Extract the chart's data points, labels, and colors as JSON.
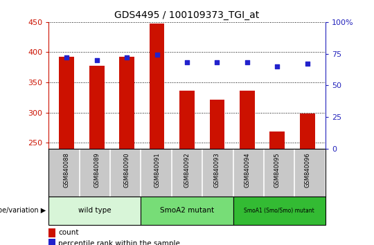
{
  "title": "GDS4495 / 100109373_TGI_at",
  "samples": [
    "GSM840088",
    "GSM840089",
    "GSM840090",
    "GSM840091",
    "GSM840092",
    "GSM840093",
    "GSM840094",
    "GSM840095",
    "GSM840096"
  ],
  "counts": [
    393,
    378,
    392,
    448,
    336,
    322,
    336,
    269,
    298
  ],
  "percentiles": [
    72,
    70,
    72,
    74,
    68,
    68,
    68,
    65,
    67
  ],
  "ylim_left": [
    240,
    450
  ],
  "ylim_right": [
    0,
    100
  ],
  "yticks_left": [
    250,
    300,
    350,
    400,
    450
  ],
  "yticks_right": [
    0,
    25,
    50,
    75,
    100
  ],
  "groups": [
    {
      "label": "wild type",
      "start": 0,
      "end": 3,
      "color": "#d8f5d8"
    },
    {
      "label": "SmoA2 mutant",
      "start": 3,
      "end": 6,
      "color": "#77dd77"
    },
    {
      "label": "SmoA1 (Smo/Smo) mutant",
      "start": 6,
      "end": 9,
      "color": "#33bb33"
    }
  ],
  "bar_color": "#cc1100",
  "dot_color": "#2222cc",
  "bar_width": 0.5,
  "legend_count_label": "count",
  "legend_percentile_label": "percentile rank within the sample",
  "left_tick_color": "#cc1100",
  "right_tick_color": "#2222bb",
  "genotype_label": "genotype/variation",
  "sample_box_color": "#c8c8c8",
  "figsize": [
    5.4,
    3.54
  ],
  "dpi": 100
}
